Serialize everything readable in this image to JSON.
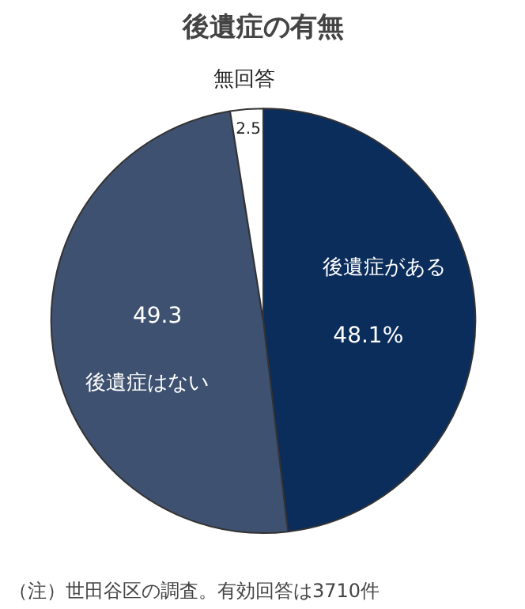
{
  "chart_data": {
    "type": "pie",
    "title": "後遺症の有無",
    "categories": [
      "後遺症がある",
      "後遺症はない",
      "無回答"
    ],
    "values": [
      48.1,
      49.3,
      2.5
    ],
    "value_labels": [
      "48.1%",
      "49.3",
      "2.5"
    ],
    "colors": [
      "#0b2d5b",
      "#3e5170",
      "#ffffff"
    ],
    "annotations": [
      "（注）世田谷区の調査。有効回答は3710件"
    ]
  }
}
